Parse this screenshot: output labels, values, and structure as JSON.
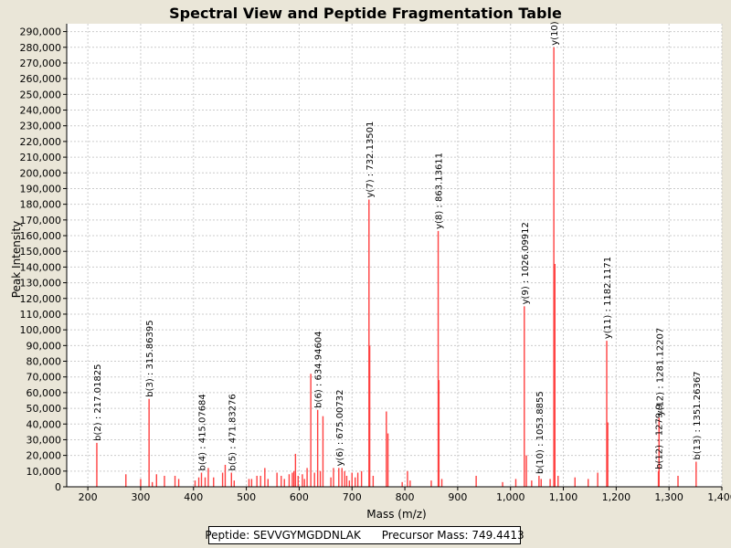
{
  "chart_data": {
    "type": "bar",
    "title": "Spectral View and Peptide Fragmentation Table",
    "xlabel": "Mass (m/z)",
    "ylabel": "Peak Intensity",
    "xlim": [
      160,
      1400
    ],
    "ylim": [
      0,
      295000
    ],
    "x_ticks": [
      200,
      300,
      400,
      500,
      600,
      700,
      800,
      900,
      1000,
      1100,
      1200,
      1300,
      1400
    ],
    "x_tick_labels": [
      "200",
      "300",
      "400",
      "500",
      "600",
      "700",
      "800",
      "900",
      "1,000",
      "1,100",
      "1,200",
      "1,300",
      "1,400"
    ],
    "y_ticks": [
      0,
      10000,
      20000,
      30000,
      40000,
      50000,
      60000,
      70000,
      80000,
      90000,
      100000,
      110000,
      120000,
      130000,
      140000,
      150000,
      160000,
      170000,
      180000,
      190000,
      200000,
      210000,
      220000,
      230000,
      240000,
      250000,
      260000,
      270000,
      280000,
      290000
    ],
    "y_tick_labels": [
      "0",
      "10,000",
      "20,000",
      "30,000",
      "40,000",
      "50,000",
      "60,000",
      "70,000",
      "80,000",
      "90,000",
      "100,000",
      "110,000",
      "120,000",
      "130,000",
      "140,000",
      "150,000",
      "160,000",
      "170,000",
      "180,000",
      "190,000",
      "200,000",
      "210,000",
      "220,000",
      "230,000",
      "240,000",
      "250,000",
      "260,000",
      "270,000",
      "280,000",
      "290,000"
    ],
    "grid": true,
    "peaks": [
      [
        217.0,
        28000
      ],
      [
        272,
        8000
      ],
      [
        300,
        5000
      ],
      [
        315.9,
        56000
      ],
      [
        322,
        3000
      ],
      [
        330,
        8000
      ],
      [
        345,
        7000
      ],
      [
        365,
        7000
      ],
      [
        372,
        5000
      ],
      [
        403,
        4000
      ],
      [
        410,
        6000
      ],
      [
        415.1,
        9000
      ],
      [
        422,
        6000
      ],
      [
        428,
        12000
      ],
      [
        438,
        6000
      ],
      [
        455,
        9000
      ],
      [
        460,
        14000
      ],
      [
        471.8,
        9000
      ],
      [
        477,
        4000
      ],
      [
        505,
        5000
      ],
      [
        510,
        5000
      ],
      [
        520,
        7000
      ],
      [
        527,
        7000
      ],
      [
        535,
        12000
      ],
      [
        541,
        5000
      ],
      [
        558,
        9000
      ],
      [
        566,
        7000
      ],
      [
        572,
        5000
      ],
      [
        581,
        8000
      ],
      [
        587,
        9000
      ],
      [
        590,
        10000
      ],
      [
        593,
        21000
      ],
      [
        598,
        7000
      ],
      [
        606,
        8000
      ],
      [
        610,
        5000
      ],
      [
        615,
        12000
      ],
      [
        622,
        72000
      ],
      [
        629,
        9000
      ],
      [
        635.0,
        49000
      ],
      [
        640,
        10000
      ],
      [
        645,
        45000
      ],
      [
        660,
        6000
      ],
      [
        665,
        12000
      ],
      [
        675.0,
        12000
      ],
      [
        681,
        12000
      ],
      [
        686,
        10000
      ],
      [
        690,
        7000
      ],
      [
        695,
        4000
      ],
      [
        700,
        9000
      ],
      [
        706,
        6000
      ],
      [
        711,
        9000
      ],
      [
        718,
        10000
      ],
      [
        732.1,
        183000
      ],
      [
        733.5,
        90000
      ],
      [
        740,
        7000
      ],
      [
        765,
        48000
      ],
      [
        768,
        34000
      ],
      [
        795,
        3000
      ],
      [
        805,
        10000
      ],
      [
        810,
        4000
      ],
      [
        850,
        4000
      ],
      [
        863.1,
        163000
      ],
      [
        864.5,
        68000
      ],
      [
        870,
        5000
      ],
      [
        935,
        7000
      ],
      [
        985,
        3000
      ],
      [
        1010,
        5000
      ],
      [
        1026.1,
        115000
      ],
      [
        1030,
        20000
      ],
      [
        1040,
        4000
      ],
      [
        1053.9,
        7000
      ],
      [
        1058,
        5000
      ],
      [
        1075,
        5000
      ],
      [
        1082,
        280000
      ],
      [
        1084,
        142000
      ],
      [
        1090,
        7000
      ],
      [
        1122,
        6000
      ],
      [
        1147,
        5000
      ],
      [
        1165,
        9000
      ],
      [
        1182.1,
        93000
      ],
      [
        1184,
        41000
      ],
      [
        1279.9,
        10000
      ],
      [
        1281.1,
        44000
      ],
      [
        1317,
        7000
      ],
      [
        1351.3,
        16000
      ]
    ],
    "annotations": [
      {
        "mz": 217.01825,
        "intensity": 28000,
        "label": "b(2) : 217.01825"
      },
      {
        "mz": 315.86395,
        "intensity": 56000,
        "label": "b(3) : 315.86395"
      },
      {
        "mz": 415.07684,
        "intensity": 9000,
        "label": "b(4) : 415.07684"
      },
      {
        "mz": 471.83276,
        "intensity": 9000,
        "label": "b(5) : 471.83276"
      },
      {
        "mz": 634.94604,
        "intensity": 49000,
        "label": "b(6) : 634.94604"
      },
      {
        "mz": 675.00732,
        "intensity": 12000,
        "label": "y(6) : 675.00732"
      },
      {
        "mz": 732.13501,
        "intensity": 183000,
        "label": "y(7) : 732.13501"
      },
      {
        "mz": 863.13611,
        "intensity": 163000,
        "label": "y(8) : 863.13611"
      },
      {
        "mz": 1026.09912,
        "intensity": 115000,
        "label": "y(9) : 1026.09912"
      },
      {
        "mz": 1053.8855,
        "intensity": 7000,
        "label": "b(10) : 1053.8855"
      },
      {
        "mz": 1082,
        "intensity": 280000,
        "label": "y(10)"
      },
      {
        "mz": 1182.1171,
        "intensity": 93000,
        "label": "y(11) : 1182.1171"
      },
      {
        "mz": 1279.9,
        "intensity": 10000,
        "label": "b(12) : 1279.9"
      },
      {
        "mz": 1281.12207,
        "intensity": 44000,
        "label": "y(12) : 1281.12207"
      },
      {
        "mz": 1351.26367,
        "intensity": 16000,
        "label": "b(13) : 1351.26367"
      }
    ],
    "colors": {
      "peak": "#ff4040",
      "grid": "#cccccc",
      "plot_bg": "#ffffff",
      "page_bg": "#eae6d8"
    }
  },
  "footer": {
    "peptide_label": "Peptide:",
    "peptide": "SEVVGYMGDDNLAK",
    "precursor_label": "Precursor Mass:",
    "precursor": "749.4413"
  }
}
